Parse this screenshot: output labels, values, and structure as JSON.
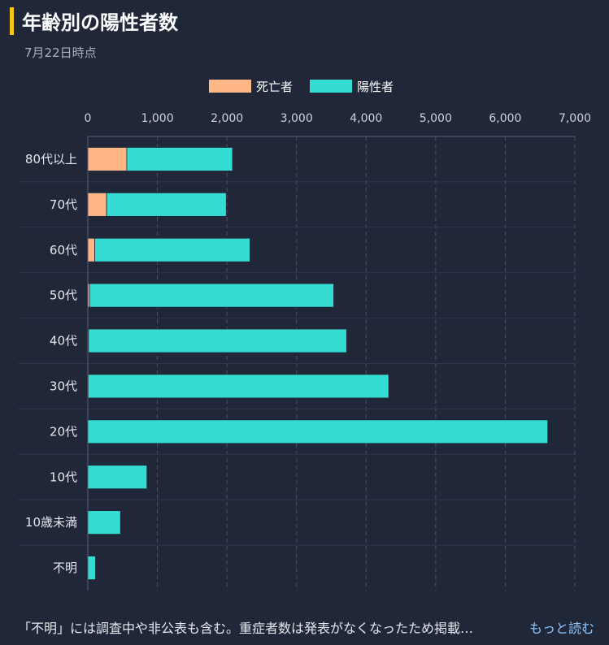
{
  "header": {
    "title": "年齢別の陽性者数",
    "subtitle": "7月22日時点"
  },
  "chart_data": {
    "type": "bar",
    "orientation": "horizontal",
    "stacked": true,
    "categories": [
      "80代以上",
      "70代",
      "60代",
      "50代",
      "40代",
      "30代",
      "20代",
      "10代",
      "10歳未満",
      "不明"
    ],
    "series": [
      {
        "name": "死亡者",
        "color": "#ffb885",
        "values": [
          560,
          270,
          100,
          25,
          10,
          5,
          0,
          0,
          0,
          0
        ]
      },
      {
        "name": "陽性者",
        "color": "#35dcd2",
        "values": [
          1520,
          1720,
          2230,
          3510,
          3710,
          4320,
          6610,
          850,
          470,
          110
        ]
      }
    ],
    "xlim": [
      0,
      7000
    ],
    "x_ticks": [
      "0",
      "1,000",
      "2,000",
      "3,000",
      "4,000",
      "5,000",
      "6,000",
      "7,000"
    ],
    "grid": true,
    "legend_position": "top"
  },
  "footer": {
    "note": "「不明」には調査中や非公表も含む。重症者数は発表がなくなったため掲載…",
    "more_link": "もっと読む"
  }
}
